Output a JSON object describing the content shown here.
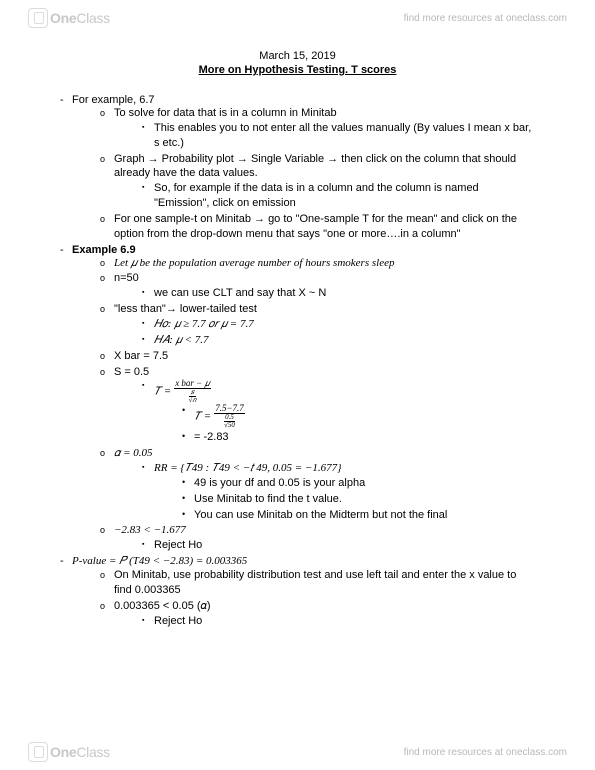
{
  "header": {
    "logo_text_one": "One",
    "logo_text_class": "Class",
    "tagline": "find more resources at oneclass.com"
  },
  "doc": {
    "date": "March 15, 2019",
    "title": "More on Hypothesis Testing. T scores",
    "ex67_label": "For example, 6.7",
    "ex67_a": "To solve for data that is in a column in Minitab",
    "ex67_a1": "This enables you to not enter all the values manually (By values I mean x bar, s etc.)",
    "ex67_b": "Graph → Probability plot → Single Variable → then click on the column that should already have the data values.",
    "ex67_b1": "So, for example if the data is in a column and the column is named \"Emission\", click on emission",
    "ex67_c": "For one sample-t on Minitab → go to \"One-sample T for the mean\" and click on the option from the drop-down menu that says \"one or more….in a column\"",
    "ex69_label": "Example 6.9",
    "ex69_let": "Let 𝜇 be the population average number of hours smokers sleep",
    "ex69_n": "n=50",
    "ex69_clt": "we can use CLT and say that X ~ N",
    "ex69_lt": "\"less than\"→  lower-tailed test",
    "ex69_h0": "𝐻𝑜: 𝜇 ≥ 7.7 𝑜𝑟 𝜇 = 7.7",
    "ex69_ha": "𝐻𝐴: 𝜇 < 7.7",
    "ex69_xbar": "X bar = 7.5",
    "ex69_s": "S = 0.5",
    "ex69_T_eq": "𝑇 =",
    "ex69_T_num": "x bar − 𝜇",
    "ex69_T_num2": "7.5−7.7",
    "ex69_T_res": "= -2.83",
    "ex69_alpha": "𝛼 = 0.05",
    "ex69_rr": "RR = {𝑇49 : 𝑇49 < −𝑡 49, 0.05 = −1.677}",
    "ex69_rr1": "49 is your df and 0.05 is your alpha",
    "ex69_rr2": "Use Minitab to find the t value.",
    "ex69_rr3": "You can use Minitab on the Midterm but not the final",
    "ex69_cmp": "−2.83 < −1.677",
    "ex69_reject": "Reject Ho",
    "pval_line": "P-value = 𝑃 (T49 < −2.83) = 0.003365",
    "pval_a": "On Minitab, use probability distribution test and use left tail and enter the x value to find 0.003365",
    "pval_b": "0.003365 < 0.05 (𝛼)",
    "pval_b1": "Reject Ho"
  },
  "footer": {
    "logo_text_one": "One",
    "logo_text_class": "Class",
    "tagline": "find more resources at oneclass.com"
  }
}
